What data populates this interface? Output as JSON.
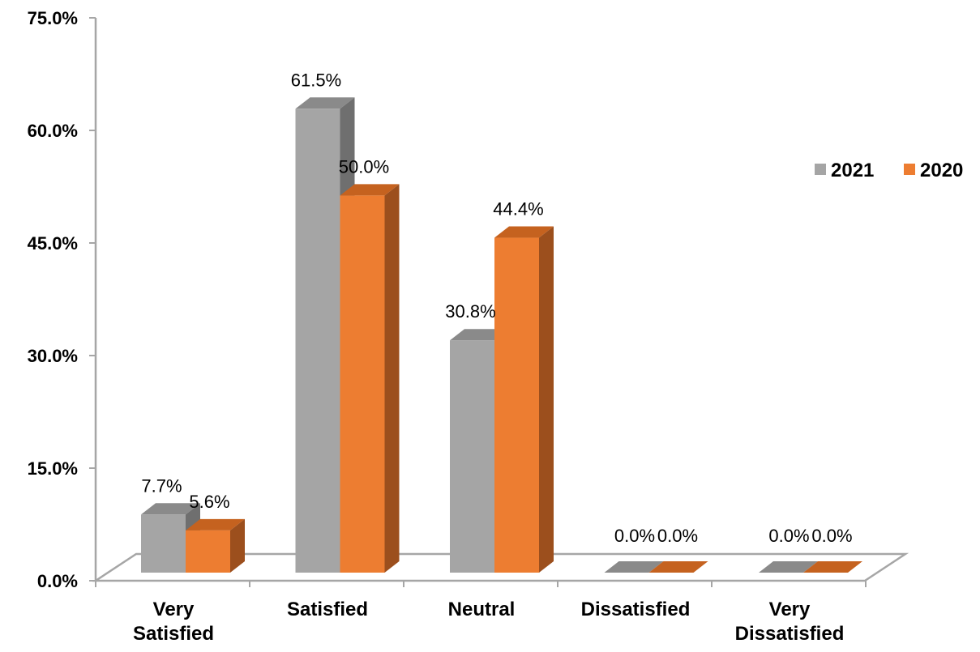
{
  "chart_data": {
    "type": "bar",
    "categories": [
      [
        "Very",
        "Satisfied"
      ],
      [
        "Satisfied"
      ],
      [
        "Neutral"
      ],
      [
        "Dissatisfied"
      ],
      [
        "Very",
        "Dissatisfied"
      ]
    ],
    "series": [
      {
        "name": "2021",
        "values": [
          7.7,
          61.5,
          30.8,
          0.0,
          0.0
        ],
        "labels": [
          "7.7%",
          "61.5%",
          "30.8%",
          "0.0%",
          "0.0%"
        ],
        "color": "#a5a5a5",
        "side_color": "#6f6f6f",
        "top_color": "#8a8a8a"
      },
      {
        "name": "2020",
        "values": [
          5.6,
          50.0,
          44.4,
          0.0,
          0.0
        ],
        "labels": [
          "5.6%",
          "50.0%",
          "44.4%",
          "0.0%",
          "0.0%"
        ],
        "color": "#ed7d31",
        "side_color": "#9c4f1d",
        "top_color": "#c5621f"
      }
    ],
    "y_ticks": [
      "0.0%",
      "15.0%",
      "30.0%",
      "45.0%",
      "60.0%",
      "75.0%"
    ],
    "ylim": [
      0,
      75
    ],
    "title": "",
    "xlabel": "",
    "ylabel": "",
    "legend": "right",
    "grid": false
  }
}
